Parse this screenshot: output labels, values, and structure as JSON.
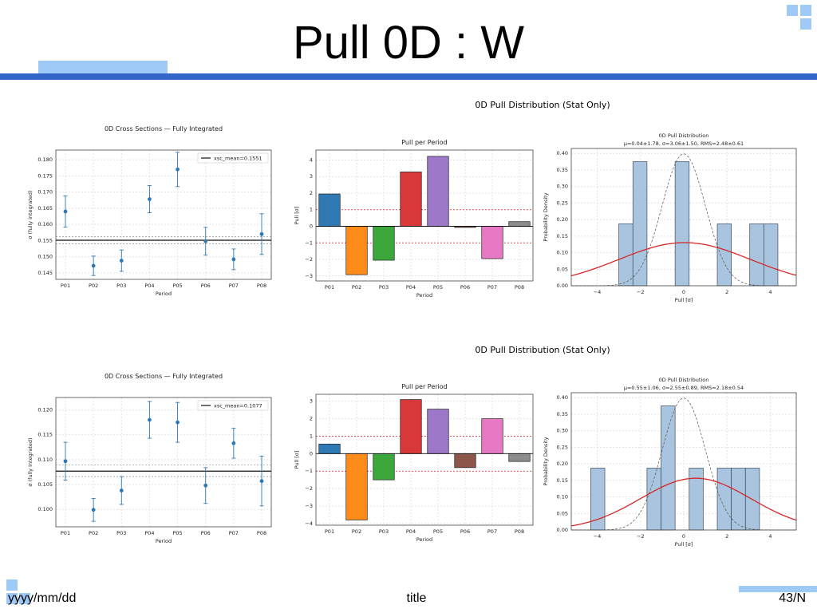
{
  "slide": {
    "title": "Pull 0D : W",
    "footer_date": "yyyy/mm/dd",
    "footer_title": "title",
    "footer_page": "43/N"
  },
  "colors": {
    "accent_bar": "#3465c8",
    "accent_light": "#9fcaf7",
    "point": "#2f78b4",
    "gauss_fit": "#d62728",
    "hist_fill": "#a8c4de"
  },
  "figures": [
    {
      "title": "0D Pull Distribution (Stat Only)"
    },
    {
      "title": "0D Pull Distribution (Stat Only)"
    }
  ],
  "chart_data": [
    {
      "type": "scatter",
      "title": "0D Cross Sections — Fully Integrated",
      "xlabel": "Period",
      "ylabel": "σ (fully integrated)",
      "categories": [
        "P01",
        "P02",
        "P03",
        "P04",
        "P05",
        "P06",
        "P07",
        "P08"
      ],
      "values": [
        0.164,
        0.1472,
        0.1488,
        0.1678,
        0.177,
        0.1548,
        0.1492,
        0.157
      ],
      "errors": [
        0.0048,
        0.003,
        0.0033,
        0.0042,
        0.0053,
        0.0043,
        0.0032,
        0.0063
      ],
      "ylim": [
        0.143,
        0.183
      ],
      "yticks": [
        0.145,
        0.15,
        0.155,
        0.16,
        0.165,
        0.17,
        0.175,
        0.18
      ],
      "mean": 0.1551,
      "mean_band": [
        0.154,
        0.1562
      ],
      "legend": "xsc_mean=0.1551",
      "grid": true,
      "legend_position": "top-right"
    },
    {
      "type": "bar",
      "title": "Pull per Period",
      "xlabel": "Period",
      "ylabel": "Pull [σ]",
      "categories": [
        "P01",
        "P02",
        "P03",
        "P04",
        "P05",
        "P06",
        "P07",
        "P08"
      ],
      "values": [
        1.95,
        -2.92,
        -2.05,
        3.28,
        4.22,
        -0.07,
        -1.95,
        0.28
      ],
      "colors": [
        "#2f7ab4",
        "#ff8c1a",
        "#3ca83c",
        "#d8383a",
        "#9e78c8",
        "#8c564b",
        "#e779c4",
        "#8c8c8c"
      ],
      "ylim": [
        -3.3,
        4.6
      ],
      "yticks": [
        -3,
        -2,
        -1,
        0,
        1,
        2,
        3,
        4
      ],
      "ytick_labels": [
        "−3",
        "−2",
        "−1",
        "0",
        "1",
        "2",
        "3",
        "4"
      ],
      "reflines": [
        1,
        -1
      ],
      "grid": true
    },
    {
      "type": "bar",
      "title": "0D Pull Distribution",
      "subtitle": "μ=0.04±1.78,  σ=3.06±1.50,  RMS=2.48±0.61",
      "xlabel": "Pull [σ]",
      "ylabel": "Probability Density",
      "bin_width": 0.65,
      "bins": [
        {
          "x0": -3.0,
          "density": 0.187
        },
        {
          "x0": -2.35,
          "density": 0.375
        },
        {
          "x0": -0.4,
          "density": 0.375
        },
        {
          "x0": 1.55,
          "density": 0.187
        },
        {
          "x0": 3.05,
          "density": 0.187
        },
        {
          "x0": 3.7,
          "density": 0.187
        }
      ],
      "fit_gaussian": {
        "mu": 0.04,
        "sigma": 3.06
      },
      "dashed_gaussian_peak": 0.397,
      "xlim": [
        -5.2,
        5.2
      ],
      "ylim": [
        0,
        0.415
      ],
      "xticks": [
        -4,
        -2,
        0,
        2,
        4
      ],
      "xtick_labels": [
        "−4",
        "−2",
        "0",
        "2",
        "4"
      ],
      "yticks": [
        0,
        0.05,
        0.1,
        0.15,
        0.2,
        0.25,
        0.3,
        0.35,
        0.4
      ],
      "ytick_labels": [
        "0.00",
        "0.05",
        "0.10",
        "0.15",
        "0.20",
        "0.25",
        "0.30",
        "0.35",
        "0.40"
      ],
      "grid": true
    },
    {
      "type": "scatter",
      "title": "0D Cross Sections — Fully Integrated",
      "xlabel": "Period",
      "ylabel": "σ (fully integrated)",
      "categories": [
        "P01",
        "P02",
        "P03",
        "P04",
        "P05",
        "P06",
        "P07",
        "P08"
      ],
      "values": [
        0.1097,
        0.0999,
        0.1038,
        0.118,
        0.1175,
        0.1048,
        0.1133,
        0.1057
      ],
      "errors": [
        0.0038,
        0.0023,
        0.0028,
        0.0037,
        0.004,
        0.0036,
        0.003,
        0.005
      ],
      "ylim": [
        0.0965,
        0.1225
      ],
      "yticks": [
        0.1,
        0.105,
        0.11,
        0.115,
        0.12
      ],
      "mean": 0.1077,
      "mean_band": [
        0.1066,
        0.1089
      ],
      "legend": "xsc_mean=0.1077",
      "grid": true,
      "legend_position": "top-right"
    },
    {
      "type": "bar",
      "title": "Pull per Period",
      "xlabel": "Period",
      "ylabel": "Pull [σ]",
      "categories": [
        "P01",
        "P02",
        "P03",
        "P04",
        "P05",
        "P06",
        "P07",
        "P08"
      ],
      "values": [
        0.55,
        -3.8,
        -1.5,
        3.1,
        2.55,
        -0.8,
        2.0,
        -0.45
      ],
      "colors": [
        "#2f7ab4",
        "#ff8c1a",
        "#3ca83c",
        "#d8383a",
        "#9e78c8",
        "#8c564b",
        "#e779c4",
        "#8c8c8c"
      ],
      "ylim": [
        -4.1,
        3.4
      ],
      "yticks": [
        -4,
        -3,
        -2,
        -1,
        0,
        1,
        2,
        3
      ],
      "ytick_labels": [
        "−4",
        "−3",
        "−2",
        "−1",
        "0",
        "1",
        "2",
        "3"
      ],
      "reflines": [
        1,
        -1
      ],
      "grid": true
    },
    {
      "type": "bar",
      "title": "0D Pull Distribution",
      "subtitle": "μ=0.55±1.06,  σ=2.55±0.89,  RMS=2.18±0.54",
      "xlabel": "Pull [σ]",
      "ylabel": "Probability Density",
      "bin_width": 0.65,
      "bins": [
        {
          "x0": -4.3,
          "density": 0.187
        },
        {
          "x0": -1.7,
          "density": 0.187
        },
        {
          "x0": -1.05,
          "density": 0.375
        },
        {
          "x0": 0.25,
          "density": 0.187
        },
        {
          "x0": 1.55,
          "density": 0.187
        },
        {
          "x0": 2.2,
          "density": 0.187
        },
        {
          "x0": 2.85,
          "density": 0.187
        }
      ],
      "fit_gaussian": {
        "mu": 0.55,
        "sigma": 2.55
      },
      "dashed_gaussian_peak": 0.397,
      "xlim": [
        -5.2,
        5.2
      ],
      "ylim": [
        0,
        0.415
      ],
      "xticks": [
        -4,
        -2,
        0,
        2,
        4
      ],
      "xtick_labels": [
        "−4",
        "−2",
        "0",
        "2",
        "4"
      ],
      "yticks": [
        0,
        0.05,
        0.1,
        0.15,
        0.2,
        0.25,
        0.3,
        0.35,
        0.4
      ],
      "ytick_labels": [
        "0.00",
        "0.05",
        "0.10",
        "0.15",
        "0.20",
        "0.25",
        "0.30",
        "0.35",
        "0.40"
      ],
      "grid": true
    }
  ]
}
